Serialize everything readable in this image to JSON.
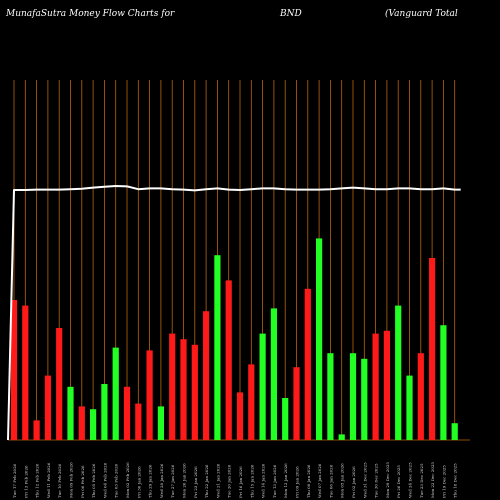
{
  "header": {
    "left": "MunafaSutra  Money Flow  Charts for",
    "symbol": "BND",
    "name": "(Vanguard Total"
  },
  "colors": {
    "background": "#000000",
    "positive": "#22ff22",
    "negative": "#ff1a1a",
    "gridline": "#b8660b",
    "price_line": "#ffffff"
  },
  "chart_data": {
    "type": "bar",
    "grid": true,
    "ylim": [
      0,
      100
    ],
    "categories": [
      "Tue 17 Feb 2026",
      "Fri 13 Feb 2026",
      "Thu 12 Feb 2026",
      "Wed 11 Feb 2026",
      "Tue 10 Feb 2026",
      "Mon 09 Feb 2026",
      "Fri 06 Feb 2026",
      "Thu 05 Feb 2026",
      "Wed 04 Feb 2026",
      "Tue 03 Feb 2026",
      "Mon 02 Feb 2026",
      "Fri 30 Jan 2026",
      "Thu 29 Jan 2026",
      "Wed 28 Jan 2026",
      "Tue 27 Jan 2026",
      "Mon 26 Jan 2026",
      "Fri 23 Jan 2026",
      "Thu 22 Jan 2026",
      "Wed 21 Jan 2026",
      "Tue 20 Jan 2026",
      "Fri 16 Jan 2026",
      "Thu 15 Jan 2026",
      "Wed 14 Jan 2026",
      "Tue 13 Jan 2026",
      "Mon 12 Jan 2026",
      "Fri 09 Jan 2026",
      "Thu 08 Jan 2026",
      "Wed 07 Jan 2026",
      "Tue 06 Jan 2026",
      "Mon 05 Jan 2026",
      "Fri 02 Jan 2026",
      "Wed 31 Dec 2025",
      "Tue 30 Dec 2025",
      "Mon 29 Dec 2025",
      "Fri 26 Dec 2025",
      "Wed 24 Dec 2025",
      "Tue 23 Dec 2025",
      "Mon 22 Dec 2025",
      "Fri 19 Dec 2025",
      "Thu 18 Dec 2025"
    ],
    "series": [
      {
        "values": [
          50,
          48,
          7,
          23,
          40,
          19,
          12,
          11,
          20,
          33,
          19,
          13,
          32,
          12,
          38,
          36,
          34,
          46,
          66,
          57,
          17,
          27,
          38,
          47,
          15,
          26,
          54,
          72,
          31,
          2,
          31,
          29,
          38,
          39,
          48,
          23,
          31,
          65,
          41,
          6
        ],
        "directions": [
          "down",
          "down",
          "down",
          "down",
          "down",
          "up",
          "down",
          "up",
          "up",
          "up",
          "down",
          "down",
          "down",
          "up",
          "down",
          "down",
          "down",
          "down",
          "up",
          "down",
          "down",
          "down",
          "up",
          "up",
          "up",
          "down",
          "down",
          "up",
          "up",
          "up",
          "up",
          "up",
          "down",
          "down",
          "up",
          "up",
          "down",
          "down",
          "up",
          "up"
        ]
      }
    ],
    "price_line": [
      99,
      99,
      99.1,
      99.1,
      99.1,
      99.2,
      99.3,
      99.6,
      99.8,
      100,
      99.9,
      99.2,
      99.4,
      99.4,
      99.2,
      99.1,
      98.9,
      99.2,
      99.4,
      99.1,
      99,
      99.2,
      99.4,
      99.4,
      99.2,
      99.1,
      99.1,
      99.1,
      99.2,
      99.4,
      99.6,
      99.4,
      99.2,
      99.2,
      99.4,
      99.4,
      99.2,
      99.2,
      99.4,
      99.1
    ]
  }
}
